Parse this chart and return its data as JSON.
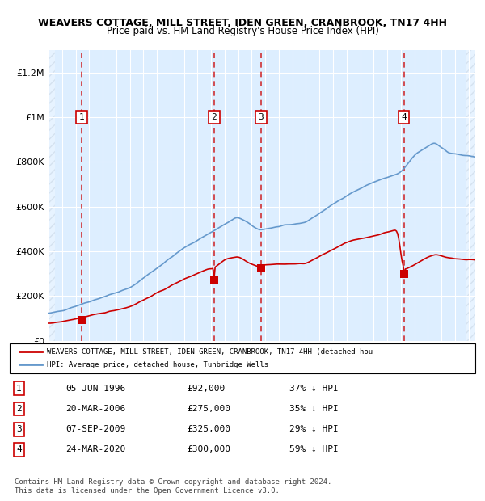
{
  "title": "WEAVERS COTTAGE, MILL STREET, IDEN GREEN, CRANBROOK, TN17 4HH",
  "subtitle": "Price paid vs. HM Land Registry's House Price Index (HPI)",
  "ylabel": "",
  "ylim": [
    0,
    1300000
  ],
  "yticks": [
    0,
    200000,
    400000,
    600000,
    800000,
    1000000,
    1200000
  ],
  "ytick_labels": [
    "£0",
    "£200K",
    "£400K",
    "£600K",
    "£800K",
    "£1M",
    "£1.2M"
  ],
  "xlim_start": 1994.0,
  "xlim_end": 2025.5,
  "sale_dates": [
    1996.44,
    2006.22,
    2009.68,
    2020.23
  ],
  "sale_prices": [
    92000,
    275000,
    325000,
    300000
  ],
  "sale_labels": [
    "1",
    "2",
    "3",
    "4"
  ],
  "legend_red": "WEAVERS COTTAGE, MILL STREET, IDEN GREEN, CRANBROOK, TN17 4HH (detached hou",
  "legend_blue": "HPI: Average price, detached house, Tunbridge Wells",
  "table_rows": [
    [
      "1",
      "05-JUN-1996",
      "£92,000",
      "37% ↓ HPI"
    ],
    [
      "2",
      "20-MAR-2006",
      "£275,000",
      "35% ↓ HPI"
    ],
    [
      "3",
      "07-SEP-2009",
      "£325,000",
      "29% ↓ HPI"
    ],
    [
      "4",
      "24-MAR-2020",
      "£300,000",
      "59% ↓ HPI"
    ]
  ],
  "footer": "Contains HM Land Registry data © Crown copyright and database right 2024.\nThis data is licensed under the Open Government Licence v3.0.",
  "bg_color": "#ddeeff",
  "hatch_color": "#aabbcc",
  "grid_color": "#ffffff",
  "red_line_color": "#cc0000",
  "blue_line_color": "#6699cc"
}
